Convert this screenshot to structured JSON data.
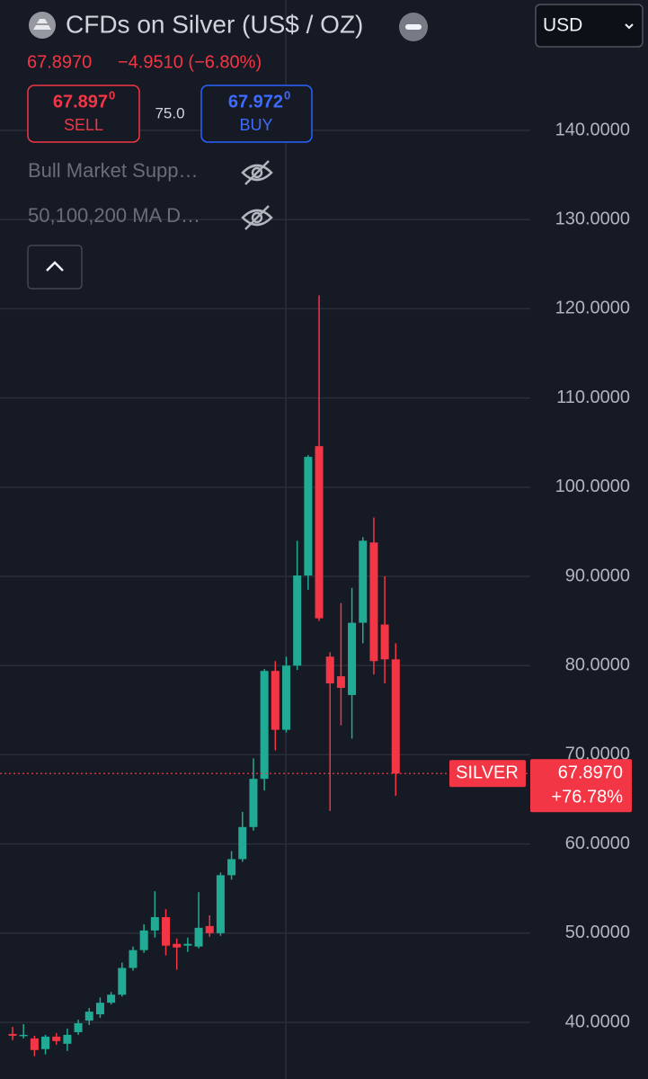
{
  "header": {
    "title": "CFDs on Silver (US$ / OZ)",
    "currency": "USD",
    "last": "67.8970",
    "change": "−4.9510 (−6.80%)"
  },
  "trade": {
    "sell_price": "67.897",
    "sell_sup": "0",
    "sell_label": "SELL",
    "spread": "75.0",
    "buy_price": "67.972",
    "buy_sup": "0",
    "buy_label": "BUY"
  },
  "indicators": [
    "Bull Market Supp…",
    "50,100,200 MA D…"
  ],
  "chart_data": {
    "type": "candlestick",
    "name": "SILVER",
    "open": [
      38.7,
      38.5,
      38.2,
      37.0,
      38.4,
      37.6,
      38.9,
      40.2,
      40.9,
      42.2,
      43.1,
      46.1,
      48.1,
      50.3,
      51.8,
      48.8,
      48.6,
      48.5,
      50.8,
      50.0,
      56.5,
      58.3,
      61.9,
      67.3,
      79.4,
      72.8,
      80.0,
      90.1,
      104.6,
      81.0,
      78.8,
      76.7,
      84.8,
      93.8,
      84.6,
      80.7
    ],
    "high": [
      39.5,
      39.8,
      38.5,
      38.6,
      38.8,
      39.3,
      40.3,
      41.6,
      42.8,
      43.4,
      46.7,
      48.5,
      51.0,
      54.7,
      52.7,
      49.4,
      49.5,
      54.6,
      52.0,
      56.8,
      59.2,
      63.6,
      69.6,
      79.6,
      80.5,
      81.0,
      94.0,
      103.6,
      121.5,
      81.5,
      87.0,
      88.7,
      94.4,
      96.6,
      90.0,
      82.5
    ],
    "low": [
      38.0,
      38.2,
      36.2,
      36.4,
      37.5,
      36.8,
      38.6,
      39.7,
      40.5,
      42.0,
      42.9,
      45.8,
      47.8,
      49.5,
      47.5,
      45.9,
      47.9,
      48.3,
      49.6,
      49.7,
      56.0,
      58.0,
      61.5,
      66.0,
      70.5,
      72.5,
      79.5,
      88.5,
      85.0,
      63.7,
      73.3,
      71.8,
      82.5,
      79.0,
      78.0,
      65.4
    ],
    "close": [
      38.5,
      38.6,
      36.9,
      38.4,
      37.9,
      38.6,
      39.9,
      41.2,
      42.2,
      43.1,
      46.1,
      48.1,
      50.3,
      51.8,
      48.6,
      48.4,
      48.8,
      50.6,
      50.0,
      56.5,
      58.3,
      61.9,
      67.3,
      79.4,
      72.8,
      80.0,
      90.1,
      103.4,
      85.3,
      78.0,
      77.5,
      84.8,
      94.0,
      80.5,
      80.7,
      67.897
    ],
    "up_color": "#22ab94",
    "down_color": "#f23645",
    "ylim": [
      33.65,
      154.62
    ],
    "yticks": [
      {
        "value": 40,
        "label": "40.0000"
      },
      {
        "value": 50,
        "label": "50.0000"
      },
      {
        "value": 60,
        "label": "60.0000"
      },
      {
        "value": 70,
        "label": "70.0000"
      },
      {
        "value": 80,
        "label": "80.0000"
      },
      {
        "value": 90,
        "label": "90.0000"
      },
      {
        "value": 100,
        "label": "100.0000"
      },
      {
        "value": 110,
        "label": "110.0000"
      },
      {
        "value": 120,
        "label": "120.0000"
      },
      {
        "value": 130,
        "label": "130.0000"
      },
      {
        "value": 140,
        "label": "140.0000"
      }
    ],
    "grid": true,
    "last_price_label": "67.8970",
    "change_label": "+76.78%"
  }
}
